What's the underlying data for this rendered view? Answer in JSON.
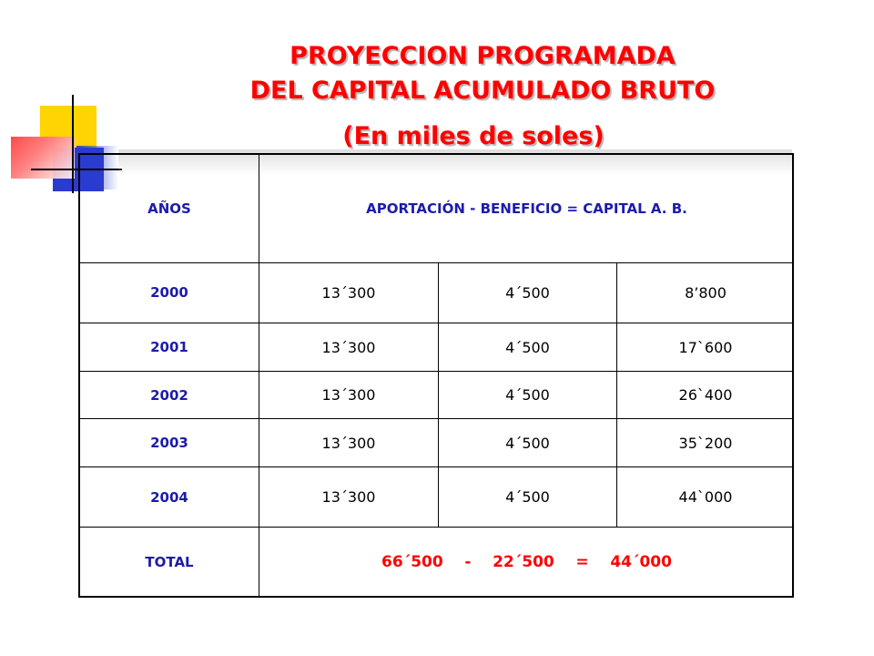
{
  "title": {
    "line1": "PROYECCION  PROGRAMADA",
    "line2": "DEL  CAPITAL  ACUMULADO  BRUTO",
    "line3": "(En miles de soles)"
  },
  "table": {
    "header": {
      "years": "AÑOS",
      "formula": "APORTACIÓN    -   BENEFICIO   =   CAPITAL A. B."
    },
    "rows": [
      {
        "year": "2000",
        "aportacion": "13´300",
        "beneficio": "4´500",
        "capital": "8’800"
      },
      {
        "year": "2001",
        "aportacion": "13´300",
        "beneficio": "4´500",
        "capital": "17`600"
      },
      {
        "year": "2002",
        "aportacion": "13´300",
        "beneficio": "4´500",
        "capital": "26`400"
      },
      {
        "year": "2003",
        "aportacion": "13´300",
        "beneficio": "4´500",
        "capital": "35`200"
      },
      {
        "year": "2004",
        "aportacion": "13´300",
        "beneficio": "4´500",
        "capital": "44`000"
      }
    ],
    "total": {
      "label": "TOTAL",
      "value": "66´500    -    22´500    =    44´000"
    }
  },
  "colors": {
    "title": "#ff0000",
    "label_blue": "#1c1caa",
    "deco_yellow": "#ffd400",
    "deco_blue": "#2a3bd0",
    "deco_red": "#ff4a4a"
  }
}
